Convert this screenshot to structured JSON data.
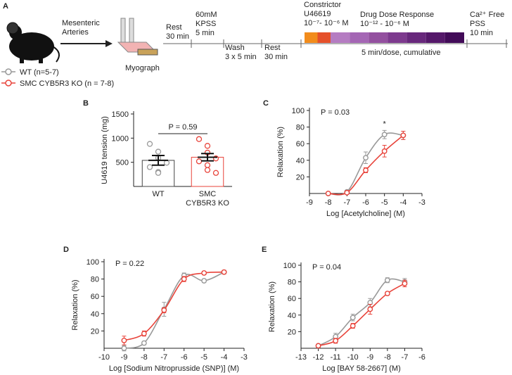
{
  "protocol": {
    "panel": "A",
    "arrow_label": [
      "Mesenteric",
      "Arteries"
    ],
    "device": "Myograph",
    "steps": [
      {
        "lines": [
          "Rest",
          "30 min"
        ]
      },
      {
        "lines": [
          "60mM",
          "KPSS",
          "5 min"
        ]
      },
      {
        "lines": [
          "Wash",
          "3 x 5 min"
        ]
      },
      {
        "lines": [
          "Rest",
          "30 min"
        ]
      },
      {
        "lines": [
          "Constrictor",
          "U46619",
          "10⁻⁷- 10⁻⁶ M"
        ],
        "color": "#e8731e",
        "boxes": [
          "#f28c1c",
          "#e5502a"
        ]
      },
      {
        "lines": [
          "Drug Dose Response",
          "10⁻¹² - 10⁻⁶ M"
        ],
        "color": "#7b2d8e",
        "boxes": [
          "#b57cc2",
          "#a466b4",
          "#93509f",
          "#7d3a8e",
          "#68287c",
          "#55186a",
          "#420b58"
        ]
      },
      {
        "lines": [
          "5 min/dose, cumulative"
        ]
      },
      {
        "lines": [
          "Ca²⁺ Free",
          "PSS",
          "10 min"
        ]
      }
    ]
  },
  "legend": [
    {
      "name": "WT (n=5-7)",
      "color": "#999999"
    },
    {
      "name": "SMC CYB5R3 KO (n = 7-8)",
      "color": "#e8433a"
    }
  ],
  "chart_data": [
    {
      "type": "bar",
      "panel": "B",
      "ylabel": "U4619 tension (mg)",
      "annotation": "P = 0.59",
      "categories": [
        [
          "WT"
        ],
        [
          "SMC",
          "CYB5R3 KO"
        ]
      ],
      "values": [
        540,
        605
      ],
      "errors": [
        100,
        75
      ],
      "colors": [
        "#444444",
        "#e8433a"
      ],
      "point_colors": [
        "#999999",
        "#e8433a"
      ],
      "points": [
        [
          880,
          720,
          590,
          490,
          400,
          300,
          280
        ],
        [
          980,
          840,
          700,
          580,
          520,
          440,
          340,
          280
        ]
      ],
      "ylim": [
        0,
        1500
      ],
      "yticks": [
        500,
        1000,
        1500
      ]
    },
    {
      "type": "line",
      "panel": "C",
      "annotation": "P = 0.03",
      "star": {
        "text": "*",
        "x": -5
      },
      "xlabel": "Log [Acetylcholine] (M)",
      "ylabel": "Relaxation (%)",
      "x": [
        -8,
        -7,
        -6,
        -5,
        -4
      ],
      "series": [
        {
          "color": "#999999",
          "values": [
            0,
            2,
            43,
            71,
            70
          ],
          "errors": [
            0,
            1,
            7,
            5,
            5
          ]
        },
        {
          "color": "#e8433a",
          "values": [
            0,
            1,
            28,
            51,
            70
          ],
          "errors": [
            0,
            1,
            3,
            7,
            5
          ]
        }
      ],
      "xlim": [
        -9,
        -3
      ],
      "xticks": [
        -9,
        -8,
        -7,
        -6,
        -5,
        -4,
        -3
      ],
      "ylim": [
        0,
        100
      ],
      "yticks": [
        20,
        40,
        60,
        80,
        100
      ]
    },
    {
      "type": "line",
      "panel": "D",
      "annotation": "P = 0.22",
      "xlabel": "Log [Sodium Nitroprusside (SNP)] (M)",
      "ylabel": "Relaxation (%)",
      "x": [
        -9,
        -8,
        -7,
        -6,
        -5,
        -4
      ],
      "series": [
        {
          "color": "#999999",
          "values": [
            0,
            6,
            45,
            84,
            78,
            88
          ],
          "errors": [
            3,
            2,
            8,
            3,
            2,
            2
          ]
        },
        {
          "color": "#e8433a",
          "values": [
            9,
            17,
            44,
            80,
            87,
            88
          ],
          "errors": [
            5,
            3,
            3,
            3,
            2,
            2
          ]
        }
      ],
      "xlim": [
        -10,
        -3
      ],
      "xticks": [
        -10,
        -9,
        -8,
        -7,
        -6,
        -5,
        -4,
        -3
      ],
      "ylim": [
        0,
        100
      ],
      "yticks": [
        20,
        40,
        60,
        80,
        100
      ]
    },
    {
      "type": "line",
      "panel": "E",
      "annotation": "P = 0.04",
      "xlabel": "Log [BAY 58-2667] (M)",
      "ylabel": "Relaxation (%)",
      "x": [
        -12,
        -11,
        -10,
        -9,
        -8,
        -7
      ],
      "series": [
        {
          "color": "#999999",
          "values": [
            3,
            14,
            37,
            55,
            82,
            80
          ],
          "errors": [
            2,
            4,
            4,
            5,
            3,
            4
          ]
        },
        {
          "color": "#e8433a",
          "values": [
            3,
            9,
            27,
            47,
            66,
            78
          ],
          "errors": [
            2,
            3,
            3,
            6,
            2,
            4
          ]
        }
      ],
      "xlim": [
        -13,
        -6
      ],
      "xticks": [
        -13,
        -12,
        -11,
        -10,
        -9,
        -8,
        -7,
        -6
      ],
      "ylim": [
        0,
        100
      ],
      "yticks": [
        20,
        40,
        60,
        80,
        100
      ]
    }
  ]
}
